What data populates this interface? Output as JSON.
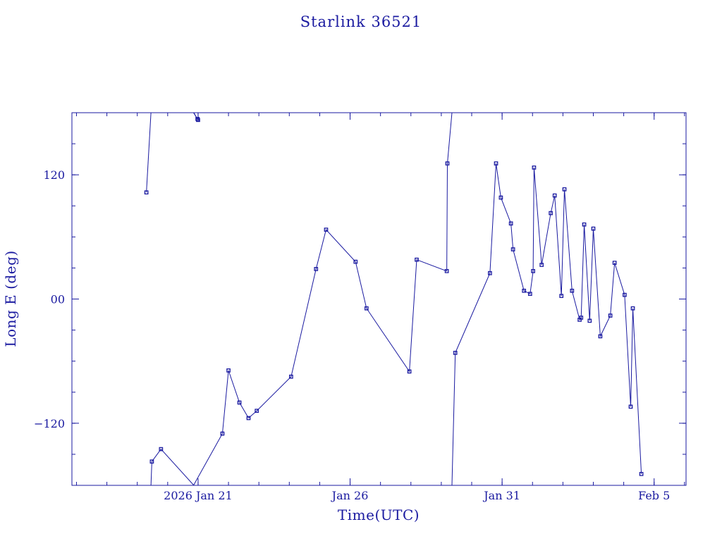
{
  "chart_data": {
    "type": "line",
    "title": "Starlink 36521",
    "xlabel": "Time(UTC)",
    "ylabel": "Long E (deg)",
    "x_unit": "days",
    "xlim": [
      "2026-01-16 20:24",
      "2026-02-06 01:12"
    ],
    "ylim": [
      -180,
      180
    ],
    "x_ticks": [
      {
        "value": "2026-01-21 00:00",
        "label": "2026 Jan 21"
      },
      {
        "value": "2026-01-26 00:00",
        "label": "Jan 26"
      },
      {
        "value": "2026-01-31 00:00",
        "label": "Jan 31"
      },
      {
        "value": "2026-02-05 00:00",
        "label": "Feb  5"
      }
    ],
    "y_ticks": [
      {
        "value": -120,
        "label": "−120"
      },
      {
        "value": 0,
        "label": "00"
      },
      {
        "value": 120,
        "label": "120"
      }
    ],
    "grid": false,
    "legend": "none",
    "series": [
      {
        "points": [
          [
            "2026-01-19 07:12",
            103
          ],
          [
            "2026-01-19 10:48",
            180
          ],
          [
            "2026-01-19 10:48",
            -180
          ],
          [
            "2026-01-19 11:31",
            -157
          ],
          [
            "2026-01-19 18:43",
            -145
          ],
          [
            "2026-01-20 20:38",
            -180
          ],
          [
            "2026-01-20 20:38",
            180
          ],
          [
            "2026-01-21 00:00",
            173
          ],
          [
            "2026-01-20 23:31",
            174
          ],
          [
            "2026-01-20 20:24",
            180
          ],
          [
            "2026-01-20 20:24",
            -180
          ],
          [
            "2026-01-21 19:12",
            -130
          ],
          [
            "2026-01-22 00:00",
            -69
          ],
          [
            "2026-01-22 08:38",
            -100
          ],
          [
            "2026-01-22 15:50",
            -115
          ],
          [
            "2026-01-22 22:19",
            -108
          ],
          [
            "2026-01-24 01:26",
            -75
          ],
          [
            "2026-01-24 21:07",
            29
          ],
          [
            "2026-01-25 05:02",
            67
          ],
          [
            "2026-01-26 04:19",
            36
          ],
          [
            "2026-01-26 12:58",
            -9
          ],
          [
            "2026-01-27 22:48",
            -70
          ],
          [
            "2026-01-28 04:34",
            38
          ],
          [
            "2026-01-29 04:19",
            27
          ],
          [
            "2026-01-29 04:48",
            131
          ],
          [
            "2026-01-29 08:24",
            180
          ],
          [
            "2026-01-29 08:24",
            -180
          ],
          [
            "2026-01-29 11:02",
            -52
          ],
          [
            "2026-01-30 14:24",
            25
          ],
          [
            "2026-01-30 19:12",
            131
          ],
          [
            "2026-01-30 23:02",
            98
          ],
          [
            "2026-01-31 06:58",
            73
          ],
          [
            "2026-01-31 08:38",
            48
          ],
          [
            "2026-01-31 17:17",
            8
          ],
          [
            "2026-01-31 22:05",
            5
          ],
          [
            "2026-02-01 00:29",
            27
          ],
          [
            "2026-02-01 01:12",
            127
          ],
          [
            "2026-02-01 07:12",
            33
          ],
          [
            "2026-02-01 14:24",
            83
          ],
          [
            "2026-02-01 17:31",
            100
          ],
          [
            "2026-02-01 22:48",
            3
          ],
          [
            "2026-02-02 01:12",
            106
          ],
          [
            "2026-02-02 07:12",
            8
          ],
          [
            "2026-02-02 13:12",
            -20
          ],
          [
            "2026-02-02 14:24",
            -18
          ],
          [
            "2026-02-02 16:48",
            72
          ],
          [
            "2026-02-02 21:07",
            -21
          ],
          [
            "2026-02-03 00:00",
            68
          ],
          [
            "2026-02-03 05:31",
            -36
          ],
          [
            "2026-02-03 13:26",
            -16
          ],
          [
            "2026-02-03 16:48",
            35
          ],
          [
            "2026-02-04 00:43",
            4
          ],
          [
            "2026-02-04 05:31",
            -104
          ],
          [
            "2026-02-04 07:12",
            -9
          ],
          [
            "2026-02-04 13:55",
            -169
          ]
        ]
      }
    ]
  }
}
